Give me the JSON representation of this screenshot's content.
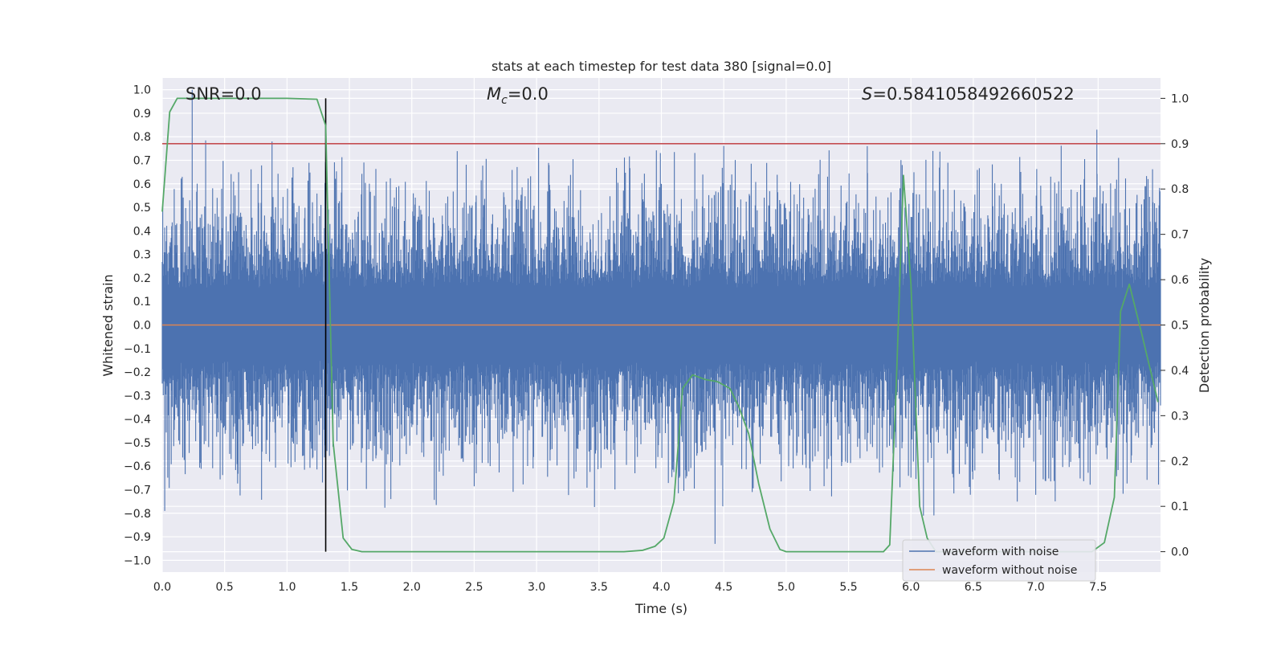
{
  "chart_data": {
    "type": "line",
    "title": "stats at each timestep for test data 380 [signal=0.0]",
    "xlabel": "Time (s)",
    "ylabel_left": "Whitened strain",
    "ylabel_right": "Detection probability",
    "xlim": [
      0.0,
      8.0
    ],
    "ylim_left": [
      -1.05,
      1.05
    ],
    "ylim_right": [
      -0.045,
      1.045
    ],
    "x_ticks": [
      "0.0",
      "0.5",
      "1.0",
      "1.5",
      "2.0",
      "2.5",
      "3.0",
      "3.5",
      "4.0",
      "4.5",
      "5.0",
      "5.5",
      "6.0",
      "6.5",
      "7.0",
      "7.5"
    ],
    "y_ticks_left": [
      "1.0",
      "0.9",
      "0.8",
      "0.7",
      "0.6",
      "0.5",
      "0.4",
      "0.3",
      "0.2",
      "0.1",
      "0.0",
      "−0.1",
      "−0.2",
      "−0.3",
      "−0.4",
      "−0.5",
      "−0.6",
      "−0.7",
      "−0.8",
      "−0.9",
      "−1.0"
    ],
    "y_ticks_right": [
      "1.0",
      "0.9",
      "0.8",
      "0.7",
      "0.6",
      "0.5",
      "0.4",
      "0.3",
      "0.2",
      "0.1",
      "0.0"
    ],
    "grid": true,
    "legend_position": "lower-right",
    "annotations": {
      "snr": "SNR=0.0",
      "mc_symbol": "M",
      "mc_sub": "c",
      "mc_value": "=0.0",
      "s_symbol": "S",
      "s_value": "=0.5841058492660522"
    },
    "threshold_line": {
      "y_right": 0.9,
      "color": "#c44e52"
    },
    "vertical_marker": {
      "x": 1.31,
      "color": "#000000"
    },
    "series": [
      {
        "name": "waveform with noise",
        "axis": "left",
        "color": "#4c72b0",
        "envelope_min": -0.45,
        "envelope_max": 0.45,
        "spikes": [
          {
            "x": 0.02,
            "y": -0.79
          },
          {
            "x": 0.24,
            "y": 1.0
          },
          {
            "x": 0.88,
            "y": 0.78
          },
          {
            "x": 4.43,
            "y": -0.93
          },
          {
            "x": 5.65,
            "y": 0.76
          },
          {
            "x": 5.93,
            "y": 0.68
          },
          {
            "x": 6.1,
            "y": -0.81
          },
          {
            "x": 7.49,
            "y": 0.83
          },
          {
            "x": 7.9,
            "y": 0.62
          }
        ]
      },
      {
        "name": "waveform without noise",
        "axis": "left",
        "color": "#dd8452",
        "x": [
          0.0,
          8.0
        ],
        "y": [
          0.0,
          0.0
        ]
      },
      {
        "name": "detection probability",
        "axis": "right",
        "color": "#55a868",
        "x": [
          0.0,
          0.06,
          0.12,
          0.2,
          1.0,
          1.24,
          1.31,
          1.37,
          1.45,
          1.52,
          1.6,
          3.7,
          3.85,
          3.95,
          4.02,
          4.1,
          4.17,
          4.25,
          4.35,
          4.45,
          4.55,
          4.62,
          4.7,
          4.78,
          4.87,
          4.95,
          5.0,
          5.78,
          5.83,
          5.88,
          5.94,
          6.0,
          6.07,
          6.13,
          6.2,
          7.45,
          7.55,
          7.63,
          7.68,
          7.75,
          7.85,
          7.98
        ],
        "y": [
          0.75,
          0.97,
          1.0,
          1.0,
          1.0,
          0.998,
          0.94,
          0.24,
          0.03,
          0.005,
          0.0,
          0.0,
          0.003,
          0.012,
          0.03,
          0.11,
          0.36,
          0.39,
          0.38,
          0.375,
          0.36,
          0.32,
          0.26,
          0.15,
          0.05,
          0.005,
          0.0,
          0.0,
          0.015,
          0.35,
          0.83,
          0.59,
          0.1,
          0.03,
          0.0,
          0.0,
          0.02,
          0.12,
          0.53,
          0.59,
          0.48,
          0.33
        ]
      }
    ]
  },
  "legend": [
    {
      "label": "waveform with noise",
      "color": "#4c72b0"
    },
    {
      "label": "waveform without noise",
      "color": "#dd8452"
    }
  ]
}
